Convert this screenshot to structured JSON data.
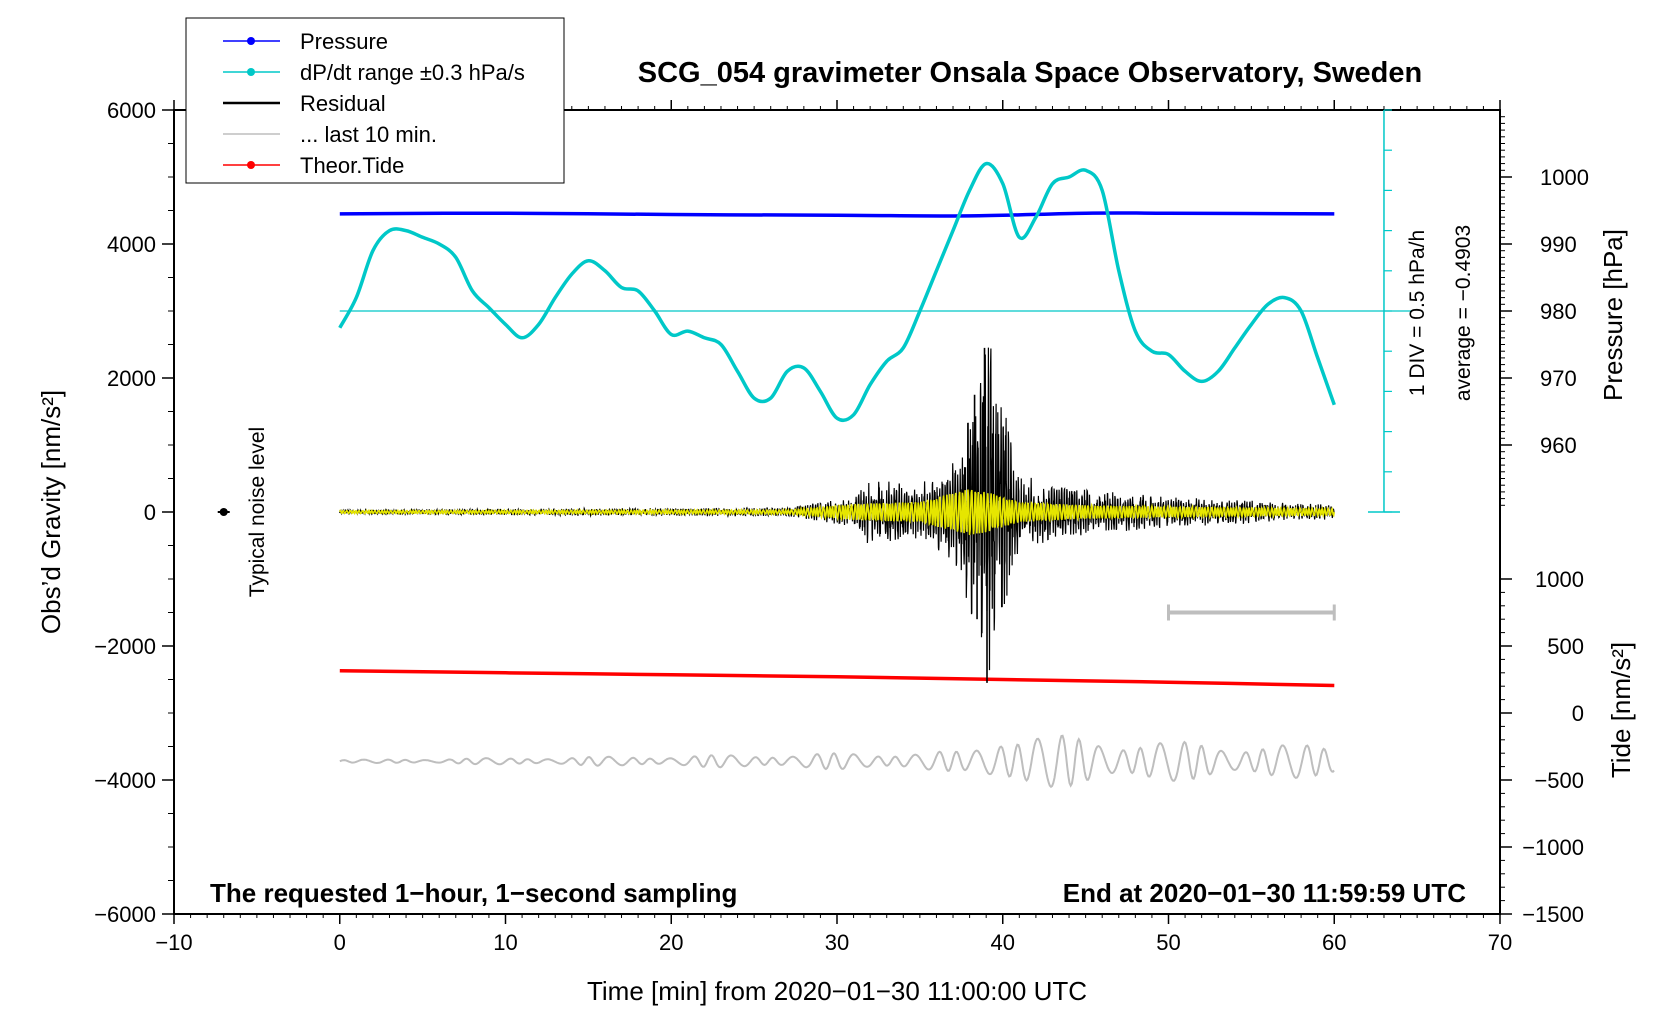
{
  "chart_data": {
    "type": "line",
    "title": "SCG_054 gravimeter Onsala Space Observatory, Sweden",
    "xlabel": "Time [min] from 2020−01−30 11:00:00 UTC",
    "ylabel_left": "Obs’d Gravity [nm/s²]",
    "ylabel_right_pressure": "Pressure [hPa]",
    "ylabel_right_tide": "Tide [nm/s²]",
    "xlim": [
      -10,
      70
    ],
    "ylim": [
      -6000,
      6000
    ],
    "x_ticks": [
      -10,
      0,
      10,
      20,
      30,
      40,
      50,
      60,
      70
    ],
    "x_tick_labels": [
      "−10",
      "0",
      "10",
      "20",
      "30",
      "40",
      "50",
      "60",
      "70"
    ],
    "y_ticks": [
      6000,
      4000,
      2000,
      0,
      -2000,
      -4000,
      -6000
    ],
    "y_tick_labels": [
      "6000",
      "4000",
      "2000",
      "0",
      "−2000",
      "−4000",
      "−6000"
    ],
    "pressure_axis": {
      "ticks": [
        1000,
        990,
        980,
        970,
        960
      ],
      "labels": [
        "1000",
        "990",
        "980",
        "970",
        "960"
      ],
      "gravity_equivalent_at_1000": 5000,
      "gravity_per_hPa": 100
    },
    "tide_axis": {
      "ticks": [
        1000,
        500,
        0,
        -500,
        -1000,
        -1500
      ],
      "labels": [
        "1000",
        "500",
        "0",
        "−500",
        "−1000",
        "−1500"
      ],
      "gravity_equivalent_at_0": -3000,
      "gravity_per_unit": 2
    },
    "legend": {
      "position": "top-left",
      "entries": [
        {
          "label": "Pressure",
          "color": "#0000ff",
          "marker": true
        },
        {
          "label": "dP/dt range ±0.3 hPa/s",
          "color": "#00c8c8",
          "marker": true
        },
        {
          "label": "Residual",
          "color": "#000000",
          "marker": false
        },
        {
          "label": "... last 10 min.",
          "color": "#bebebe",
          "marker": false
        },
        {
          "label": "Theor.Tide",
          "color": "#ff0000",
          "marker": true
        }
      ]
    },
    "series": [
      {
        "name": "Pressure",
        "color": "#0000ff",
        "x": [
          0,
          10,
          20,
          30,
          38,
          45,
          50,
          60
        ],
        "y": [
          4450,
          4460,
          4440,
          4430,
          4420,
          4460,
          4460,
          4450
        ]
      },
      {
        "name": "dP/dt",
        "color": "#00c8c8",
        "x": [
          0,
          1,
          2,
          3,
          4,
          5,
          6,
          7,
          8,
          9,
          10,
          11,
          12,
          13,
          14,
          15,
          16,
          17,
          18,
          19,
          20,
          21,
          22,
          23,
          24,
          25,
          26,
          27,
          28,
          29,
          30,
          31,
          32,
          33,
          34,
          35,
          36,
          37,
          38,
          39,
          40,
          41,
          42,
          43,
          44,
          45,
          46,
          47,
          48,
          49,
          50,
          51,
          52,
          53,
          54,
          55,
          56,
          57,
          58,
          59,
          60
        ],
        "y": [
          2750,
          3200,
          3900,
          4200,
          4200,
          4100,
          4000,
          3800,
          3300,
          3050,
          2800,
          2600,
          2800,
          3200,
          3550,
          3750,
          3600,
          3350,
          3300,
          3000,
          2650,
          2700,
          2600,
          2500,
          2100,
          1700,
          1700,
          2100,
          2150,
          1800,
          1400,
          1450,
          1900,
          2250,
          2450,
          3000,
          3600,
          4200,
          4800,
          5200,
          4900,
          4100,
          4400,
          4900,
          5000,
          5100,
          4800,
          3600,
          2700,
          2400,
          2350,
          2100,
          1950,
          2100,
          2450,
          2800,
          3100,
          3200,
          3000,
          2300,
          1600
        ]
      },
      {
        "name": "Residual",
        "color": "#000000",
        "x": [
          0,
          27,
          31,
          32,
          35,
          37.5,
          38,
          38.5,
          39,
          39.2,
          41,
          45,
          50,
          60
        ],
        "envelope": [
          30,
          60,
          200,
          450,
          350,
          800,
          1750,
          -1600,
          2450,
          -2550,
          500,
          300,
          200,
          100
        ]
      },
      {
        "name": "Residual (filtered)",
        "color": "#e6e600",
        "x": [
          0,
          27,
          31,
          35,
          38,
          39,
          41,
          45,
          50,
          60
        ],
        "envelope": [
          20,
          30,
          120,
          150,
          350,
          300,
          150,
          100,
          80,
          50
        ]
      },
      {
        "name": "... last 10 min.",
        "color": "#bebebe",
        "x": [
          0,
          20,
          30,
          38,
          39,
          40,
          41,
          45,
          50,
          55,
          60
        ],
        "y_center": -3720,
        "envelope": [
          20,
          80,
          120,
          150,
          300,
          450,
          450,
          350,
          300,
          250,
          250
        ]
      },
      {
        "name": "Theor.Tide",
        "color": "#ff0000",
        "x": [
          0,
          10,
          20,
          30,
          40,
          50,
          60
        ],
        "y": [
          -2370,
          -2400,
          -2430,
          -2460,
          -2500,
          -2540,
          -2590
        ]
      }
    ],
    "dpdt_scale": {
      "text_1": "1 DIV = 0.5 hPa/h",
      "text_2": "average = −0.4903",
      "x": 63,
      "y_top": 6000,
      "y_bottom": 0,
      "y_mid": 3000,
      "divisions": 10
    },
    "last10_bar": {
      "x_start": 50,
      "x_end": 60,
      "y": -1500
    },
    "noise": {
      "label": "Typical noise level",
      "x": -7,
      "y": 0
    },
    "annotation_left": "The requested 1−hour, 1−second sampling",
    "annotation_right": "End at 2020−01−30 11:59:59 UTC"
  }
}
